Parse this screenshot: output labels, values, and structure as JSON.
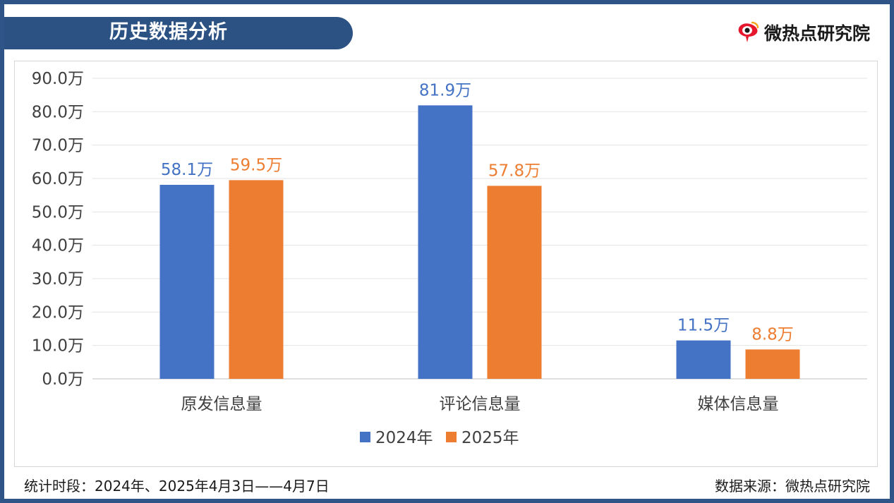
{
  "header": {
    "title": "历史数据分析",
    "logo_text": "微热点研究院",
    "logo_icon": "weibo-eye-icon"
  },
  "footer": {
    "stats_period": "统计时段：2024年、2025年4月3日——4月7日",
    "source": "数据来源：微热点研究院"
  },
  "chart_data": {
    "type": "bar",
    "categories": [
      "原发信息量",
      "评论信息量",
      "媒体信息量"
    ],
    "series": [
      {
        "name": "2024年",
        "values": [
          58.1,
          81.9,
          11.5
        ],
        "labels": [
          "58.1万",
          "81.9万",
          "11.5万"
        ],
        "color": "#4472c4"
      },
      {
        "name": "2025年",
        "values": [
          59.5,
          57.8,
          8.8
        ],
        "labels": [
          "59.5万",
          "57.8万",
          "8.8万"
        ],
        "color": "#ed7d31"
      }
    ],
    "yticks": [
      "0.0万",
      "10.0万",
      "20.0万",
      "30.0万",
      "40.0万",
      "50.0万",
      "60.0万",
      "70.0万",
      "80.0万",
      "90.0万"
    ],
    "ylim": [
      0,
      90
    ],
    "grid": true,
    "legend_position": "bottom"
  }
}
